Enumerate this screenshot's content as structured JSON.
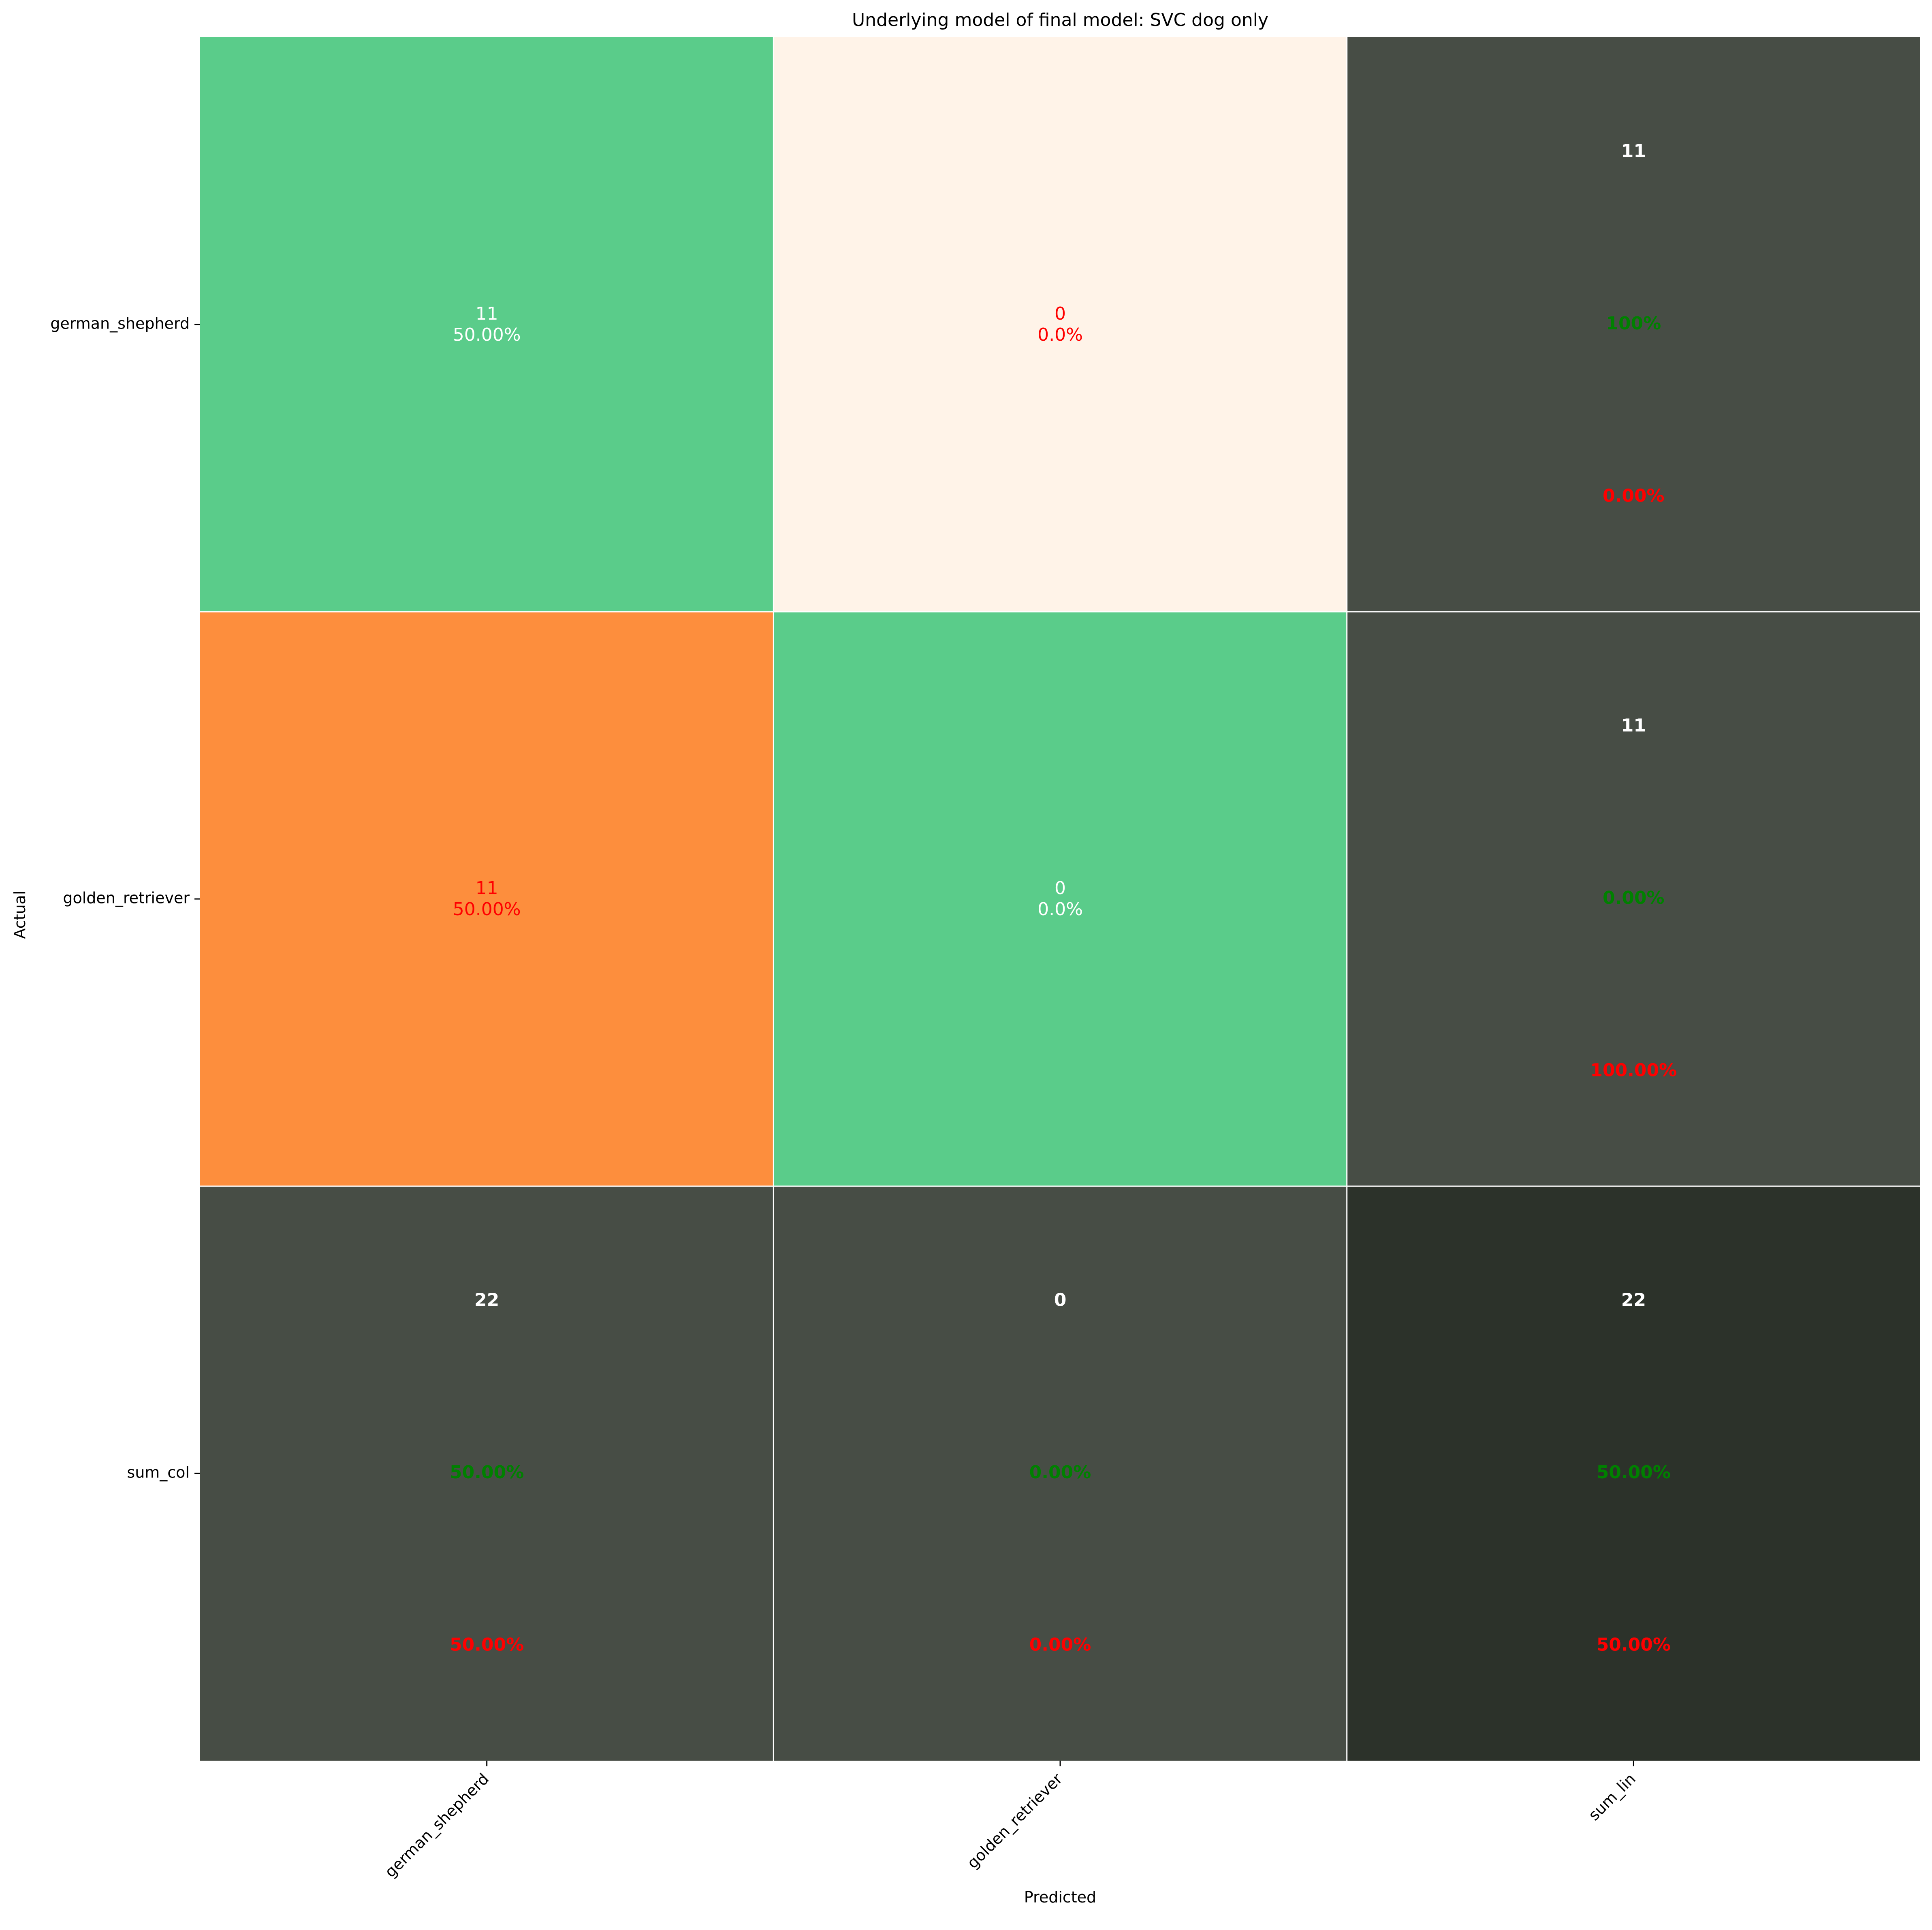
{
  "chart_data": {
    "type": "heatmap",
    "title": "Underlying model of final model: SVC dog only",
    "xlabel": "Predicted",
    "ylabel": "Actual",
    "x_categories": [
      "german_shepherd",
      "golden_retriever",
      "sum_lin"
    ],
    "y_categories": [
      "german_shepherd",
      "golden_retriever",
      "sum_col"
    ],
    "grid": true,
    "colors": {
      "correct": "#5ACC8A",
      "error_nonzero": "#FD8E3D",
      "error_zero": "#FFF3E8",
      "summary": "#474D45",
      "total": "#2C322A",
      "text_white": "#FFFFFF",
      "text_red": "#FF0000",
      "text_green": "#008000",
      "gridline": "#FFFFFF"
    },
    "cells": [
      [
        {
          "kind": "correct",
          "count": "11",
          "pct": "50.00%",
          "text_color": "white"
        },
        {
          "kind": "error_zero",
          "count": "0",
          "pct": "0.0%",
          "text_color": "red"
        },
        {
          "kind": "summary",
          "count": "11",
          "green": "100%",
          "red": "0.00%"
        }
      ],
      [
        {
          "kind": "error_nonzero",
          "count": "11",
          "pct": "50.00%",
          "text_color": "red"
        },
        {
          "kind": "correct",
          "count": "0",
          "pct": "0.0%",
          "text_color": "white"
        },
        {
          "kind": "summary",
          "count": "11",
          "green": "0.00%",
          "red": "100.00%"
        }
      ],
      [
        {
          "kind": "summary",
          "count": "22",
          "green": "50.00%",
          "red": "50.00%"
        },
        {
          "kind": "summary",
          "count": "0",
          "green": "0.00%",
          "red": "0.00%"
        },
        {
          "kind": "total",
          "count": "22",
          "green": "50.00%",
          "red": "50.00%"
        }
      ]
    ]
  }
}
